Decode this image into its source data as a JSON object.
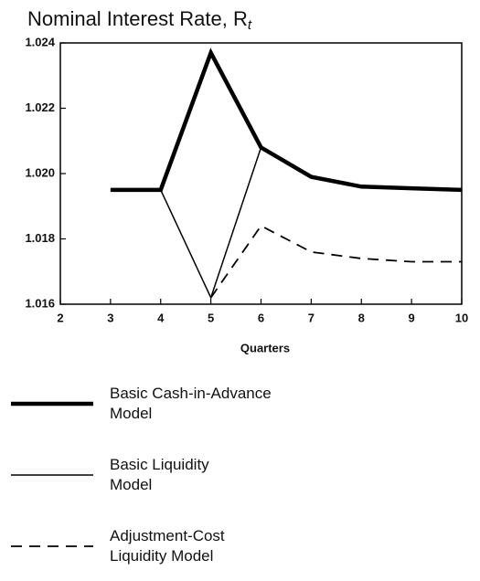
{
  "chart_data": {
    "type": "line",
    "title": "Nominal Interest Rate, R",
    "title_subscript": "t",
    "x_label": "Quarters",
    "x": [
      3,
      4,
      5,
      6,
      7,
      8,
      9,
      10
    ],
    "series": [
      {
        "name": "Basic Cash-in-Advance\nModel",
        "color": "#000000",
        "style": "thick",
        "values": [
          1.0195,
          1.0195,
          1.0237,
          1.0208,
          1.0199,
          1.0196,
          1.01955,
          1.0195
        ]
      },
      {
        "name": "Basic Liquidity\nModel",
        "color": "#000000",
        "style": "thin",
        "values": [
          1.0195,
          1.0195,
          1.0162,
          1.0208,
          1.0199,
          1.0196,
          1.01955,
          1.0195
        ]
      },
      {
        "name": "Adjustment-Cost\nLiquidity Model",
        "color": "#000000",
        "style": "dashed",
        "values": [
          null,
          null,
          1.0162,
          1.0184,
          1.0176,
          1.0174,
          1.0173,
          1.0173
        ]
      }
    ],
    "xlim": [
      2,
      10
    ],
    "xticks": [
      2,
      3,
      4,
      5,
      6,
      7,
      8,
      9,
      10
    ],
    "ylim": [
      1.016,
      1.024
    ],
    "yticks": [
      1.016,
      1.018,
      {
        "value": 1.02,
        "label": "1.020"
      },
      1.022,
      1.024
    ]
  }
}
